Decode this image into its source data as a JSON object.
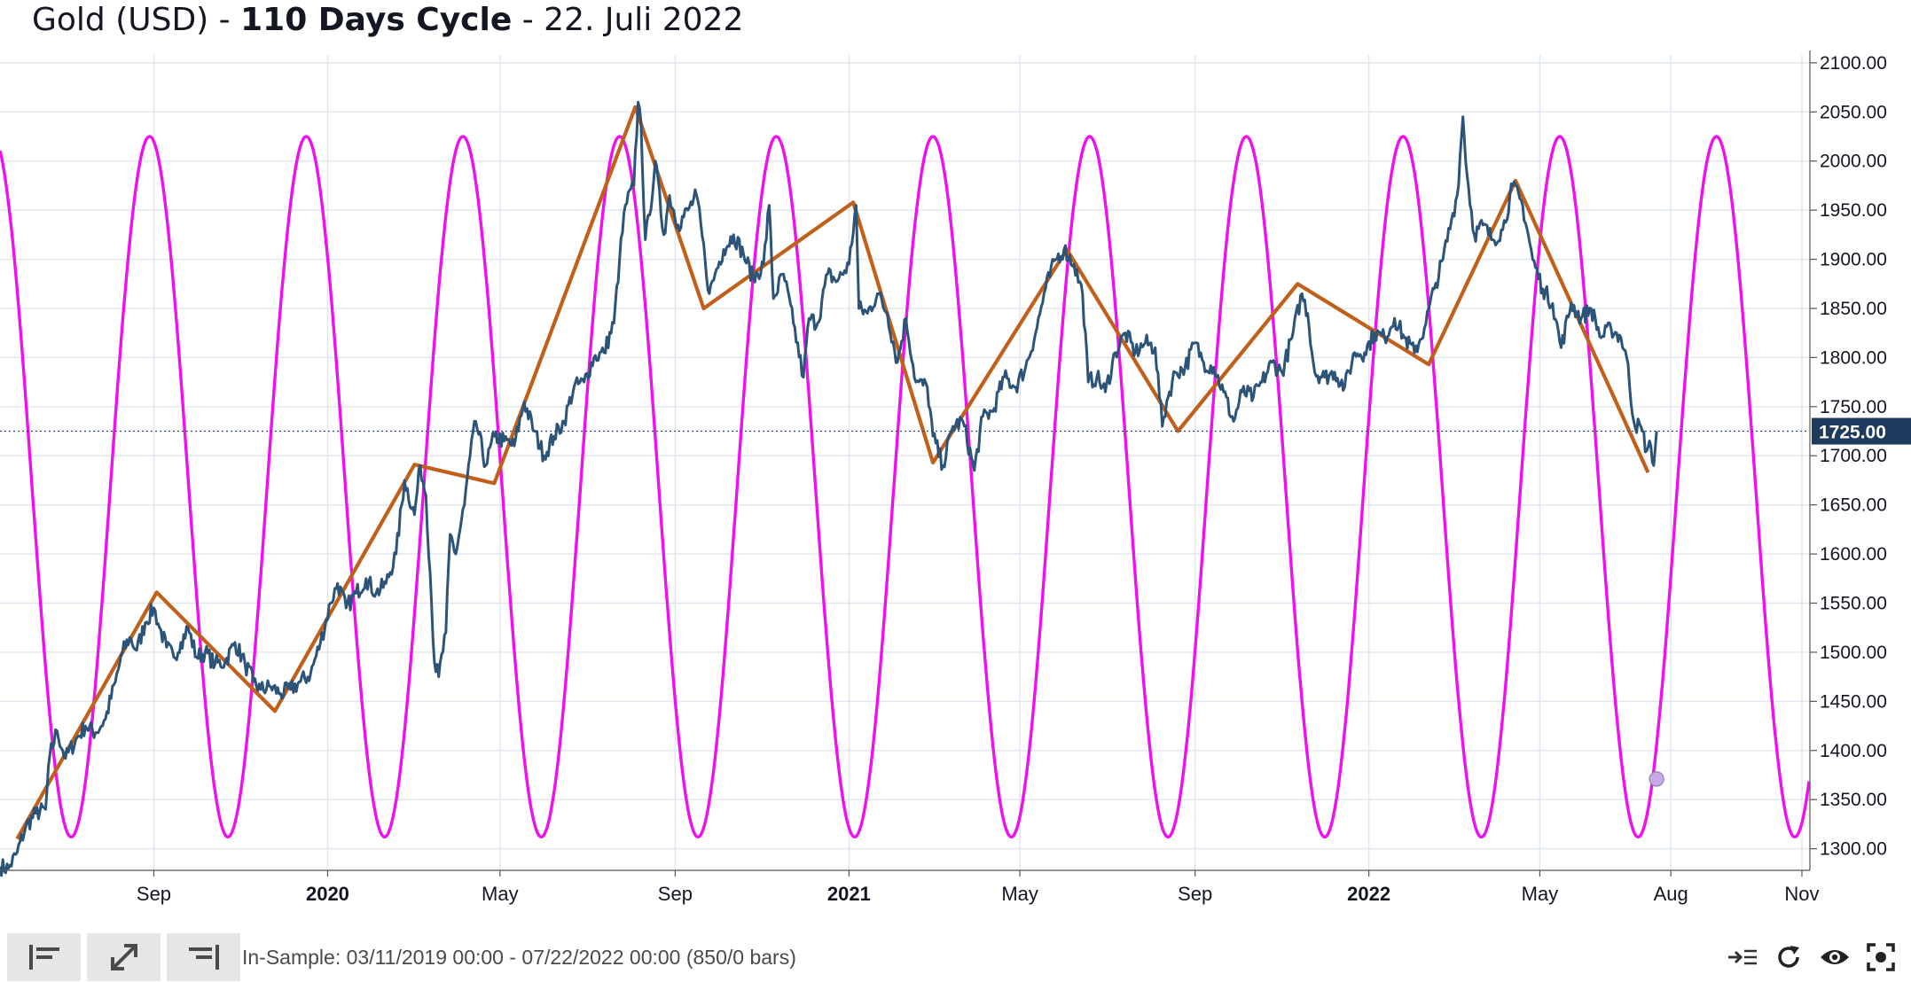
{
  "title": {
    "prefix": "Gold (USD) - ",
    "bold": "110 Days Cycle",
    "suffix": " - 22. Juli 2022"
  },
  "colors": {
    "price": "#2c5378",
    "cycle": "#ee10ee",
    "trend": "#c0601a",
    "grid": "#dfe6ef",
    "price_label_bg": "#1e3a5c"
  },
  "toolbar": {
    "buttons": [
      "align-left-icon",
      "expand-icon",
      "align-right-icon"
    ],
    "range_text": "In-Sample: 03/11/2019 00:00 - 07/22/2022 00:00 (850/0 bars)",
    "right_icons": [
      "scroll-to-end-icon",
      "refresh-icon",
      "visibility-icon",
      "screenshot-icon"
    ]
  },
  "chart_data": {
    "type": "line",
    "x_axis": {
      "ticks": [
        {
          "date": "2019-09-01",
          "label": "Sep",
          "bold": false
        },
        {
          "date": "2020-01-01",
          "label": "2020",
          "bold": true
        },
        {
          "date": "2020-05-01",
          "label": "May",
          "bold": false
        },
        {
          "date": "2020-09-01",
          "label": "Sep",
          "bold": false
        },
        {
          "date": "2021-01-01",
          "label": "2021",
          "bold": true
        },
        {
          "date": "2021-05-01",
          "label": "May",
          "bold": false
        },
        {
          "date": "2021-09-01",
          "label": "Sep",
          "bold": false
        },
        {
          "date": "2022-01-01",
          "label": "2022",
          "bold": true
        },
        {
          "date": "2022-05-01",
          "label": "May",
          "bold": false
        },
        {
          "date": "2022-08-01",
          "label": "Aug",
          "bold": false
        },
        {
          "date": "2022-11-01",
          "label": "Nov",
          "bold": false
        }
      ],
      "range": [
        "2019-05-16",
        "2022-11-06"
      ]
    },
    "y_axis": {
      "ticks": [
        "1300.00",
        "1350.00",
        "1400.00",
        "1450.00",
        "1500.00",
        "1550.00",
        "1600.00",
        "1650.00",
        "1700.00",
        "1750.00",
        "1800.00",
        "1850.00",
        "1900.00",
        "1950.00",
        "2000.00",
        "2050.00",
        "2100.00"
      ],
      "range": [
        1278,
        2108
      ],
      "current_price": 1725,
      "current_price_label": "1725.00"
    },
    "series": [
      {
        "role": "price",
        "points": [
          [
            "2019-05-16",
            1282
          ],
          [
            "2019-05-22",
            1280
          ],
          [
            "2019-05-28",
            1296
          ],
          [
            "2019-06-03",
            1322
          ],
          [
            "2019-06-10",
            1336
          ],
          [
            "2019-06-17",
            1340
          ],
          [
            "2019-06-20",
            1395
          ],
          [
            "2019-06-25",
            1420
          ],
          [
            "2019-07-01",
            1392
          ],
          [
            "2019-07-08",
            1410
          ],
          [
            "2019-07-15",
            1425
          ],
          [
            "2019-07-22",
            1418
          ],
          [
            "2019-07-29",
            1432
          ],
          [
            "2019-08-05",
            1470
          ],
          [
            "2019-08-10",
            1500
          ],
          [
            "2019-08-15",
            1515
          ],
          [
            "2019-08-20",
            1502
          ],
          [
            "2019-08-26",
            1530
          ],
          [
            "2019-09-01",
            1545
          ],
          [
            "2019-09-05",
            1525
          ],
          [
            "2019-09-10",
            1505
          ],
          [
            "2019-09-15",
            1495
          ],
          [
            "2019-09-20",
            1510
          ],
          [
            "2019-09-25",
            1525
          ],
          [
            "2019-10-01",
            1495
          ],
          [
            "2019-10-07",
            1500
          ],
          [
            "2019-10-14",
            1488
          ],
          [
            "2019-10-21",
            1490
          ],
          [
            "2019-10-28",
            1510
          ],
          [
            "2019-11-04",
            1488
          ],
          [
            "2019-11-10",
            1470
          ],
          [
            "2019-11-15",
            1462
          ],
          [
            "2019-11-22",
            1465
          ],
          [
            "2019-11-29",
            1458
          ],
          [
            "2019-12-06",
            1462
          ],
          [
            "2019-12-13",
            1470
          ],
          [
            "2019-12-20",
            1478
          ],
          [
            "2019-12-27",
            1510
          ],
          [
            "2020-01-03",
            1550
          ],
          [
            "2020-01-08",
            1570
          ],
          [
            "2020-01-14",
            1545
          ],
          [
            "2020-01-21",
            1560
          ],
          [
            "2020-01-28",
            1575
          ],
          [
            "2020-02-04",
            1560
          ],
          [
            "2020-02-11",
            1570
          ],
          [
            "2020-02-18",
            1600
          ],
          [
            "2020-02-24",
            1675
          ],
          [
            "2020-03-02",
            1640
          ],
          [
            "2020-03-06",
            1690
          ],
          [
            "2020-03-10",
            1660
          ],
          [
            "2020-03-13",
            1580
          ],
          [
            "2020-03-16",
            1490
          ],
          [
            "2020-03-19",
            1475
          ],
          [
            "2020-03-24",
            1520
          ],
          [
            "2020-03-27",
            1620
          ],
          [
            "2020-03-31",
            1600
          ],
          [
            "2020-04-06",
            1650
          ],
          [
            "2020-04-10",
            1700
          ],
          [
            "2020-04-14",
            1735
          ],
          [
            "2020-04-21",
            1690
          ],
          [
            "2020-04-27",
            1720
          ],
          [
            "2020-05-04",
            1715
          ],
          [
            "2020-05-11",
            1710
          ],
          [
            "2020-05-18",
            1755
          ],
          [
            "2020-05-25",
            1725
          ],
          [
            "2020-06-01",
            1700
          ],
          [
            "2020-06-08",
            1720
          ],
          [
            "2020-06-15",
            1735
          ],
          [
            "2020-06-22",
            1770
          ],
          [
            "2020-06-29",
            1775
          ],
          [
            "2020-07-06",
            1800
          ],
          [
            "2020-07-13",
            1805
          ],
          [
            "2020-07-20",
            1835
          ],
          [
            "2020-07-24",
            1900
          ],
          [
            "2020-07-28",
            1955
          ],
          [
            "2020-08-03",
            1975
          ],
          [
            "2020-08-06",
            2060
          ],
          [
            "2020-08-08",
            2040
          ],
          [
            "2020-08-11",
            1920
          ],
          [
            "2020-08-14",
            1945
          ],
          [
            "2020-08-18",
            2000
          ],
          [
            "2020-08-24",
            1925
          ],
          [
            "2020-08-28",
            1965
          ],
          [
            "2020-09-03",
            1935
          ],
          [
            "2020-09-10",
            1950
          ],
          [
            "2020-09-16",
            1965
          ],
          [
            "2020-09-22",
            1900
          ],
          [
            "2020-09-25",
            1865
          ],
          [
            "2020-09-29",
            1885
          ],
          [
            "2020-10-05",
            1910
          ],
          [
            "2020-10-12",
            1925
          ],
          [
            "2020-10-19",
            1905
          ],
          [
            "2020-10-26",
            1880
          ],
          [
            "2020-11-02",
            1895
          ],
          [
            "2020-11-06",
            1955
          ],
          [
            "2020-11-09",
            1860
          ],
          [
            "2020-11-16",
            1885
          ],
          [
            "2020-11-23",
            1835
          ],
          [
            "2020-11-30",
            1780
          ],
          [
            "2020-12-04",
            1840
          ],
          [
            "2020-12-10",
            1835
          ],
          [
            "2020-12-17",
            1885
          ],
          [
            "2020-12-24",
            1878
          ],
          [
            "2021-01-01",
            1895
          ],
          [
            "2021-01-06",
            1955
          ],
          [
            "2021-01-08",
            1850
          ],
          [
            "2021-01-14",
            1845
          ],
          [
            "2021-01-21",
            1865
          ],
          [
            "2021-01-28",
            1845
          ],
          [
            "2021-02-04",
            1795
          ],
          [
            "2021-02-10",
            1840
          ],
          [
            "2021-02-17",
            1775
          ],
          [
            "2021-02-25",
            1770
          ],
          [
            "2021-03-01",
            1720
          ],
          [
            "2021-03-08",
            1690
          ],
          [
            "2021-03-15",
            1730
          ],
          [
            "2021-03-22",
            1735
          ],
          [
            "2021-03-30",
            1685
          ],
          [
            "2021-04-05",
            1740
          ],
          [
            "2021-04-12",
            1745
          ],
          [
            "2021-04-20",
            1780
          ],
          [
            "2021-04-28",
            1770
          ],
          [
            "2021-05-05",
            1790
          ],
          [
            "2021-05-12",
            1825
          ],
          [
            "2021-05-19",
            1870
          ],
          [
            "2021-05-26",
            1900
          ],
          [
            "2021-06-01",
            1910
          ],
          [
            "2021-06-08",
            1895
          ],
          [
            "2021-06-14",
            1865
          ],
          [
            "2021-06-18",
            1775
          ],
          [
            "2021-06-24",
            1780
          ],
          [
            "2021-06-30",
            1765
          ],
          [
            "2021-07-07",
            1805
          ],
          [
            "2021-07-14",
            1825
          ],
          [
            "2021-07-21",
            1805
          ],
          [
            "2021-07-28",
            1815
          ],
          [
            "2021-08-04",
            1810
          ],
          [
            "2021-08-09",
            1730
          ],
          [
            "2021-08-12",
            1755
          ],
          [
            "2021-08-18",
            1785
          ],
          [
            "2021-08-25",
            1790
          ],
          [
            "2021-09-01",
            1815
          ],
          [
            "2021-09-07",
            1795
          ],
          [
            "2021-09-14",
            1790
          ],
          [
            "2021-09-21",
            1765
          ],
          [
            "2021-09-28",
            1735
          ],
          [
            "2021-10-04",
            1765
          ],
          [
            "2021-10-12",
            1760
          ],
          [
            "2021-10-18",
            1775
          ],
          [
            "2021-10-25",
            1795
          ],
          [
            "2021-11-01",
            1785
          ],
          [
            "2021-11-08",
            1820
          ],
          [
            "2021-11-15",
            1865
          ],
          [
            "2021-11-19",
            1845
          ],
          [
            "2021-11-24",
            1785
          ],
          [
            "2021-12-01",
            1780
          ],
          [
            "2021-12-08",
            1785
          ],
          [
            "2021-12-15",
            1770
          ],
          [
            "2021-12-22",
            1805
          ],
          [
            "2021-12-29",
            1805
          ],
          [
            "2022-01-05",
            1825
          ],
          [
            "2022-01-12",
            1820
          ],
          [
            "2022-01-19",
            1840
          ],
          [
            "2022-01-26",
            1820
          ],
          [
            "2022-02-02",
            1805
          ],
          [
            "2022-02-09",
            1830
          ],
          [
            "2022-02-16",
            1870
          ],
          [
            "2022-02-22",
            1900
          ],
          [
            "2022-02-28",
            1940
          ],
          [
            "2022-03-04",
            1965
          ],
          [
            "2022-03-08",
            2045
          ],
          [
            "2022-03-11",
            1985
          ],
          [
            "2022-03-16",
            1925
          ],
          [
            "2022-03-22",
            1935
          ],
          [
            "2022-03-29",
            1920
          ],
          [
            "2022-04-05",
            1930
          ],
          [
            "2022-04-12",
            1975
          ],
          [
            "2022-04-19",
            1955
          ],
          [
            "2022-04-26",
            1900
          ],
          [
            "2022-05-03",
            1870
          ],
          [
            "2022-05-10",
            1855
          ],
          [
            "2022-05-16",
            1810
          ],
          [
            "2022-05-23",
            1855
          ],
          [
            "2022-05-30",
            1840
          ],
          [
            "2022-06-06",
            1850
          ],
          [
            "2022-06-13",
            1820
          ],
          [
            "2022-06-20",
            1830
          ],
          [
            "2022-06-27",
            1820
          ],
          [
            "2022-07-01",
            1800
          ],
          [
            "2022-07-06",
            1735
          ],
          [
            "2022-07-12",
            1725
          ],
          [
            "2022-07-15",
            1705
          ],
          [
            "2022-07-18",
            1710
          ],
          [
            "2022-07-20",
            1690
          ],
          [
            "2022-07-22",
            1725
          ]
        ]
      },
      {
        "role": "trend",
        "points": [
          [
            "2019-05-28",
            1310
          ],
          [
            "2019-09-03",
            1561
          ],
          [
            "2019-11-25",
            1440
          ],
          [
            "2020-03-02",
            1691
          ],
          [
            "2020-04-27",
            1672
          ],
          [
            "2020-08-04",
            2055
          ],
          [
            "2020-09-21",
            1850
          ],
          [
            "2021-01-04",
            1958
          ],
          [
            "2021-03-01",
            1693
          ],
          [
            "2021-06-03",
            1910
          ],
          [
            "2021-08-20",
            1725
          ],
          [
            "2021-11-12",
            1875
          ],
          [
            "2022-02-12",
            1793
          ],
          [
            "2022-04-14",
            1980
          ],
          [
            "2022-07-16",
            1683
          ]
        ]
      },
      {
        "role": "cycle",
        "period_days": 110,
        "low": 1312,
        "high": 2025,
        "peak_date": "2019-08-29",
        "marker": [
          "2022-07-22",
          1371
        ]
      }
    ]
  }
}
